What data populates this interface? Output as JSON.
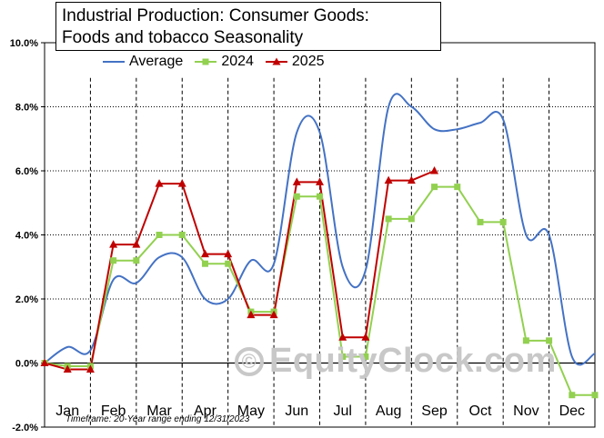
{
  "title_lines": [
    "Industrial Production: Consumer Goods:",
    "Foods and tobacco Seasonality"
  ],
  "legend": [
    {
      "name": "Average",
      "color": "#4472c4",
      "marker": "none"
    },
    {
      "name": "2024",
      "color": "#92d050",
      "marker": "square"
    },
    {
      "name": "2025",
      "color": "#c00000",
      "marker": "triangle"
    }
  ],
  "timeframe": "Timeframe: 20-Year range ending 12/31/2023",
  "watermark": "EquityClock.com",
  "watermark_symbol": "©",
  "chart_data": {
    "type": "line",
    "title": "Industrial Production: Consumer Goods: Foods and tobacco Seasonality",
    "xlabel": "",
    "ylabel": "",
    "ylim": [
      -2.0,
      10.0
    ],
    "y_ticks": [
      -2.0,
      0.0,
      2.0,
      4.0,
      6.0,
      8.0,
      10.0
    ],
    "y_tick_labels": [
      "-2.0%",
      "0.0%",
      "2.0%",
      "4.0%",
      "6.0%",
      "8.0%",
      "10.0%"
    ],
    "months": [
      "Jan",
      "Feb",
      "Mar",
      "Apr",
      "May",
      "Jun",
      "Jul",
      "Aug",
      "Sep",
      "Oct",
      "Nov",
      "Dec"
    ],
    "x_range": [
      0,
      12
    ],
    "month_dividers": [
      1,
      2,
      3,
      4,
      5,
      6,
      7,
      8,
      9,
      10,
      11
    ],
    "series": [
      {
        "name": "Average",
        "color": "#4472c4",
        "smooth": true,
        "x": [
          0,
          0.5,
          1,
          1.5,
          2,
          2.5,
          3,
          3.5,
          4,
          4.5,
          5,
          5.5,
          6,
          6.5,
          7,
          7.5,
          8,
          8.5,
          9,
          9.5,
          10,
          10.5,
          11,
          11.5,
          12
        ],
        "values": [
          0.0,
          0.5,
          0.4,
          2.6,
          2.5,
          3.3,
          3.3,
          2.0,
          2.0,
          3.2,
          3.1,
          7.2,
          7.2,
          3.0,
          2.9,
          8.0,
          8.0,
          7.3,
          7.3,
          7.5,
          7.6,
          4.0,
          4.0,
          0.2,
          0.3
        ]
      },
      {
        "name": "2024",
        "color": "#92d050",
        "marker": "square",
        "x": [
          0,
          0.5,
          1,
          1.5,
          2,
          2.5,
          3,
          3.5,
          4,
          4.5,
          5,
          5.5,
          6,
          6.5,
          7,
          7.5,
          8,
          8.5,
          9,
          9.5,
          10,
          10.5,
          11,
          11.5,
          12
        ],
        "values": [
          0.0,
          -0.1,
          -0.1,
          3.2,
          3.2,
          4.0,
          4.0,
          3.1,
          3.1,
          1.6,
          1.6,
          5.2,
          5.2,
          0.2,
          0.2,
          4.5,
          4.5,
          5.5,
          5.5,
          4.4,
          4.4,
          0.7,
          0.7,
          -1.0,
          -1.0
        ]
      },
      {
        "name": "2025",
        "color": "#c00000",
        "marker": "triangle",
        "x": [
          0,
          0.5,
          1,
          1.5,
          2,
          2.5,
          3,
          3.5,
          4,
          4.5,
          5,
          5.5,
          6,
          6.5,
          7,
          7.5,
          8,
          8.5
        ],
        "values": [
          0.0,
          -0.2,
          -0.2,
          3.7,
          3.7,
          5.6,
          5.6,
          3.4,
          3.4,
          1.5,
          1.5,
          5.65,
          5.65,
          0.8,
          0.8,
          5.7,
          5.7,
          6.0
        ]
      }
    ]
  }
}
